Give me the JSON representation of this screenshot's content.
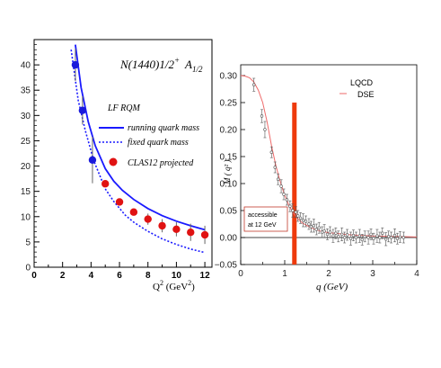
{
  "chart_data": [
    {
      "type": "scatter",
      "title": {
        "main": "N(1440)1/2",
        "sup": "+",
        "amp": "A",
        "amp_sub": "1/2"
      },
      "xlabel": {
        "main": "Q",
        "sup": "2",
        "unit": " (GeV",
        "unit_sup": "2",
        "close": ")"
      },
      "ylabel": "",
      "xlim": [
        0,
        12.5
      ],
      "ylim": [
        0,
        45
      ],
      "xticks": [
        "0",
        "2",
        "4",
        "6",
        "8",
        "10",
        "12"
      ],
      "yticks": [
        "0",
        "5",
        "10",
        "15",
        "20",
        "25",
        "30",
        "35",
        "40"
      ],
      "legend_header": "LF RQM",
      "series": [
        {
          "name": "running quark mass",
          "kind": "line",
          "style": "solid",
          "color": "#1a1aff",
          "x": [
            2.9,
            3.3,
            3.8,
            4.3,
            5,
            5.6,
            6.2,
            7,
            8,
            9,
            10,
            11,
            12
          ],
          "y": [
            44,
            35.5,
            28.8,
            24,
            19.5,
            17,
            15.2,
            13.4,
            11.6,
            10.2,
            9.1,
            8.2,
            7.4
          ]
        },
        {
          "name": "fixed quark mass",
          "kind": "line",
          "style": "dotted",
          "color": "#1a1aff",
          "x": [
            2.6,
            3.1,
            3.6,
            4.2,
            5,
            5.6,
            6.4,
            7,
            8,
            9,
            10,
            11,
            12
          ],
          "y": [
            43,
            33,
            27,
            21,
            15.5,
            13,
            10.3,
            8.9,
            7.1,
            5.6,
            4.5,
            3.6,
            2.9
          ]
        },
        {
          "name": "",
          "kind": "points",
          "color": "#1a1adb",
          "x": [
            2.9,
            3.4,
            4.1
          ],
          "y": [
            40,
            31,
            21.2
          ],
          "err": [
            3.2,
            2.8,
            4.6
          ]
        },
        {
          "name": "CLAS12 projected",
          "kind": "points",
          "color": "#e01212",
          "x": [
            5,
            6,
            7,
            8,
            9,
            10,
            11,
            12
          ],
          "y": [
            16.5,
            12.9,
            10.9,
            9.5,
            8.2,
            7.5,
            6.9,
            6.4
          ],
          "err": [
            0.6,
            0.6,
            0.6,
            1.1,
            1.3,
            1.4,
            1.7,
            1.8
          ]
        }
      ]
    },
    {
      "type": "scatter",
      "title": "",
      "xlabel": "q (GeV)",
      "ylabel": "M ( q² )",
      "xlim": [
        0,
        4
      ],
      "ylim": [
        -0.05,
        0.32
      ],
      "xticks": [
        "0",
        "1",
        "2",
        "3",
        "4"
      ],
      "yticks": [
        "−0.05",
        "0.00",
        "0.05",
        "0.10",
        "0.15",
        "0.20",
        "0.25",
        "0.30"
      ],
      "legend": [
        "LQCD",
        "DSE"
      ],
      "annotation": [
        "accessible",
        "at 12 GeV"
      ],
      "vertical_band": {
        "x": 1.22,
        "ymin": -0.05,
        "ymax": 0.25,
        "color": "#ee3a0c"
      },
      "series": [
        {
          "name": "DSE",
          "kind": "line",
          "color": "#ee6a6a",
          "x": [
            0,
            0.1,
            0.2,
            0.3,
            0.4,
            0.5,
            0.6,
            0.7,
            0.8,
            0.9,
            1.0,
            1.1,
            1.2,
            1.3,
            1.4,
            1.6,
            1.8,
            2.0,
            2.5,
            3.0,
            3.5,
            4.0
          ],
          "y": [
            0.3,
            0.299,
            0.296,
            0.288,
            0.273,
            0.25,
            0.214,
            0.17,
            0.133,
            0.103,
            0.078,
            0.059,
            0.045,
            0.035,
            0.027,
            0.018,
            0.012,
            0.009,
            0.005,
            0.003,
            0.002,
            0.001
          ]
        },
        {
          "name": "LQCD",
          "kind": "points",
          "color": "#555555",
          "x": [
            0.3,
            0.48,
            0.55,
            0.7,
            0.78,
            0.85,
            0.92,
            0.98,
            1.05,
            1.12,
            1.18,
            1.25,
            1.3,
            1.36,
            1.42,
            1.48,
            1.55,
            1.6,
            1.66,
            1.72,
            1.78,
            1.85,
            1.9,
            1.97,
            2.03,
            2.1,
            2.16,
            2.22,
            2.3,
            2.36,
            2.42,
            2.5,
            2.56,
            2.62,
            2.7,
            2.76,
            2.82,
            2.9,
            2.96,
            3.02,
            3.1,
            3.16,
            3.22,
            3.3,
            3.36,
            3.42,
            3.5,
            3.56,
            3.62,
            3.7
          ],
          "y": [
            0.283,
            0.225,
            0.2,
            0.158,
            0.13,
            0.108,
            0.095,
            0.08,
            0.07,
            0.058,
            0.05,
            0.047,
            0.04,
            0.036,
            0.032,
            0.03,
            0.025,
            0.02,
            0.022,
            0.015,
            0.018,
            0.01,
            0.012,
            0.006,
            0.01,
            0.003,
            0.008,
            0.002,
            0.006,
            0.0,
            0.005,
            -0.002,
            0.004,
            0.0,
            0.003,
            -0.004,
            0.002,
            0.0,
            0.006,
            -0.002,
            0.003,
            0.0,
            0.008,
            -0.003,
            0.002,
            0.0,
            0.004,
            -0.002,
            0.001,
            0.0
          ],
          "err": [
            0.012,
            0.012,
            0.015,
            0.01,
            0.01,
            0.01,
            0.012,
            0.01,
            0.01,
            0.01,
            0.012,
            0.01,
            0.01,
            0.01,
            0.012,
            0.01,
            0.01,
            0.01,
            0.012,
            0.01,
            0.01,
            0.01,
            0.012,
            0.01,
            0.01,
            0.012,
            0.01,
            0.01,
            0.012,
            0.01,
            0.01,
            0.012,
            0.01,
            0.01,
            0.012,
            0.01,
            0.01,
            0.012,
            0.01,
            0.01,
            0.012,
            0.01,
            0.01,
            0.012,
            0.01,
            0.01,
            0.012,
            0.01,
            0.01,
            0.01
          ]
        }
      ]
    }
  ]
}
